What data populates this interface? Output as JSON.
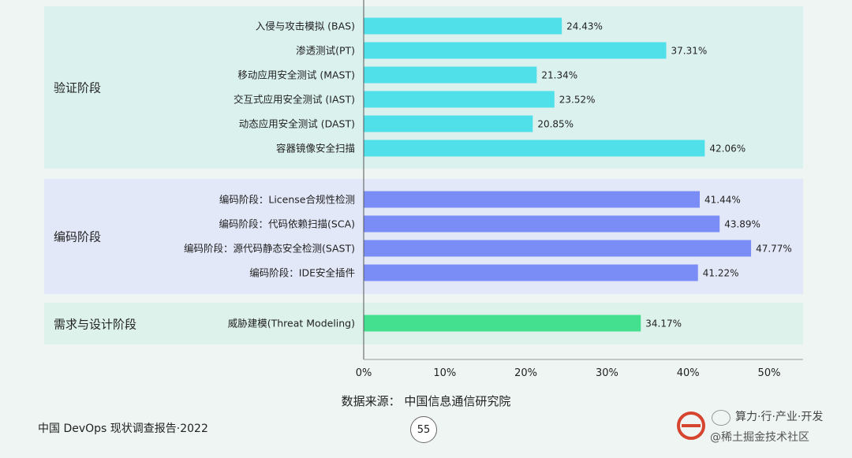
{
  "chart_data": {
    "type": "bar",
    "orientation": "horizontal",
    "xlim": [
      0,
      50
    ],
    "ticks": [
      "0%",
      "10%",
      "20%",
      "30%",
      "40%",
      "50%"
    ],
    "groups": [
      {
        "label": "验证阶段",
        "color": "#4fe0ea",
        "panel_color": "#dbf1ee",
        "items": [
          {
            "category": "入侵与攻击模拟 (BAS)",
            "value": 24.43,
            "label": "24.43%"
          },
          {
            "category": "渗透测试(PT)",
            "value": 37.31,
            "label": "37.31%"
          },
          {
            "category": "移动应用安全测试 (MAST)",
            "value": 21.34,
            "label": "21.34%"
          },
          {
            "category": "交互式应用安全测试 (IAST)",
            "value": 23.52,
            "label": "23.52%"
          },
          {
            "category": "动态应用安全测试 (DAST)",
            "value": 20.85,
            "label": "20.85%"
          },
          {
            "category": "容器镜像安全扫描",
            "value": 42.06,
            "label": "42.06%"
          }
        ]
      },
      {
        "label": "编码阶段",
        "color": "#7a8df7",
        "panel_color": "#e3e8f8",
        "items": [
          {
            "category": "编码阶段：License合规性检测",
            "value": 41.44,
            "label": "41.44%"
          },
          {
            "category": "编码阶段：代码依赖扫描(SCA)",
            "value": 43.89,
            "label": "43.89%"
          },
          {
            "category": "编码阶段：源代码静态安全检测(SAST)",
            "value": 47.77,
            "label": "47.77%"
          },
          {
            "category": "编码阶段：IDE安全插件",
            "value": 41.22,
            "label": "41.22%"
          }
        ]
      },
      {
        "label": "需求与设计阶段",
        "color": "#45e08f",
        "panel_color": "#ddf2ea",
        "items": [
          {
            "category": "威胁建模(Threat Modeling)",
            "value": 34.17,
            "label": "34.17%"
          }
        ]
      }
    ]
  },
  "source_text": "数据来源： 中国信息通信研究院",
  "footer_title": "中国 DevOps 现状调查报告·2022",
  "page_number": "55",
  "watermark": {
    "top_text": "算力·行·产业·开发",
    "bottom_text": "@稀土掘金技术社区"
  }
}
